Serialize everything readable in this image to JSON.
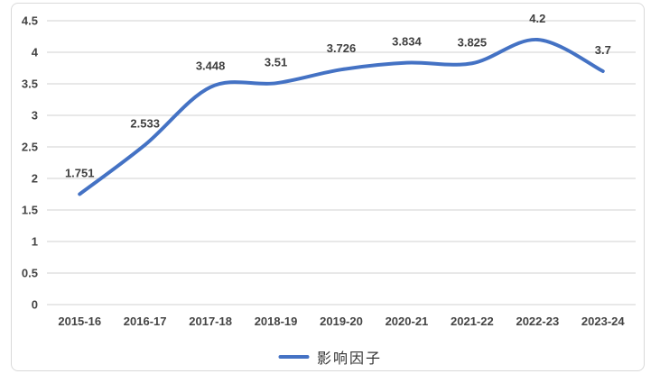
{
  "chart_data": {
    "type": "line",
    "title": "",
    "categories": [
      "2015-16",
      "2016-17",
      "2017-18",
      "2018-19",
      "2019-20",
      "2020-21",
      "2021-22",
      "2022-23",
      "2023-24"
    ],
    "series": [
      {
        "name": "影响因子",
        "color": "#4472C4",
        "values": [
          1.751,
          2.533,
          3.448,
          3.51,
          3.726,
          3.834,
          3.825,
          4.2,
          3.7
        ],
        "value_labels": [
          "1.751",
          "2.533",
          "3.448",
          "3.51",
          "3.726",
          "3.834",
          "3.825",
          "4.2",
          "3.7"
        ]
      }
    ],
    "xlabel": "",
    "ylabel": "",
    "ylim": [
      0,
      4.5
    ],
    "ytick_step": 0.5,
    "ytick_labels": [
      "0",
      "0.5",
      "1",
      "1.5",
      "2",
      "2.5",
      "3",
      "3.5",
      "4",
      "4.5"
    ],
    "grid": true,
    "smoothed_line": true,
    "data_labels_shown": true,
    "legend_position": "bottom"
  },
  "legend": {
    "label": "影响因子"
  },
  "colors": {
    "line": "#4472C4",
    "gridline": "#D9D9D9",
    "frame_border": "#D9D9D9",
    "axis_text": "#444444",
    "data_label_text": "#3F3F3F",
    "legend_text": "#333333",
    "background": "#FFFFFF"
  }
}
